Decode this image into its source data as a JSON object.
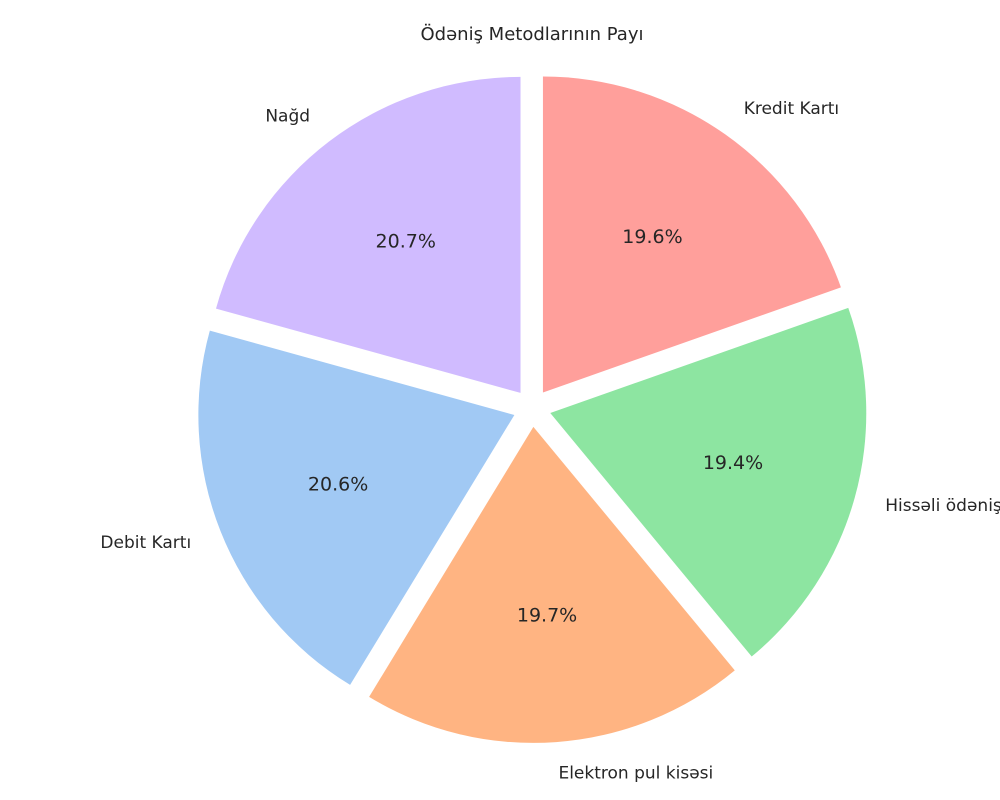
{
  "chart_data": {
    "type": "pie",
    "title": "Ödəniş Metodlarının Payı",
    "slices": [
      {
        "label": "Nağd",
        "value": 20.7,
        "display": "20.7%",
        "color": "#d0bbff"
      },
      {
        "label": "Debit Kartı",
        "value": 20.6,
        "display": "20.6%",
        "color": "#a1c9f4"
      },
      {
        "label": "Elektron pul kisəsi",
        "value": 19.7,
        "display": "19.7%",
        "color": "#ffb482"
      },
      {
        "label": "Hissəli ödəniş",
        "value": 19.4,
        "display": "19.4%",
        "color": "#8de5a1"
      },
      {
        "label": "Kredit Kartı",
        "value": 19.6,
        "display": "19.6%",
        "color": "#ff9f9b"
      }
    ],
    "start_angle_deg": 90,
    "direction": "counterclockwise",
    "exploded": true,
    "legend": "none"
  }
}
